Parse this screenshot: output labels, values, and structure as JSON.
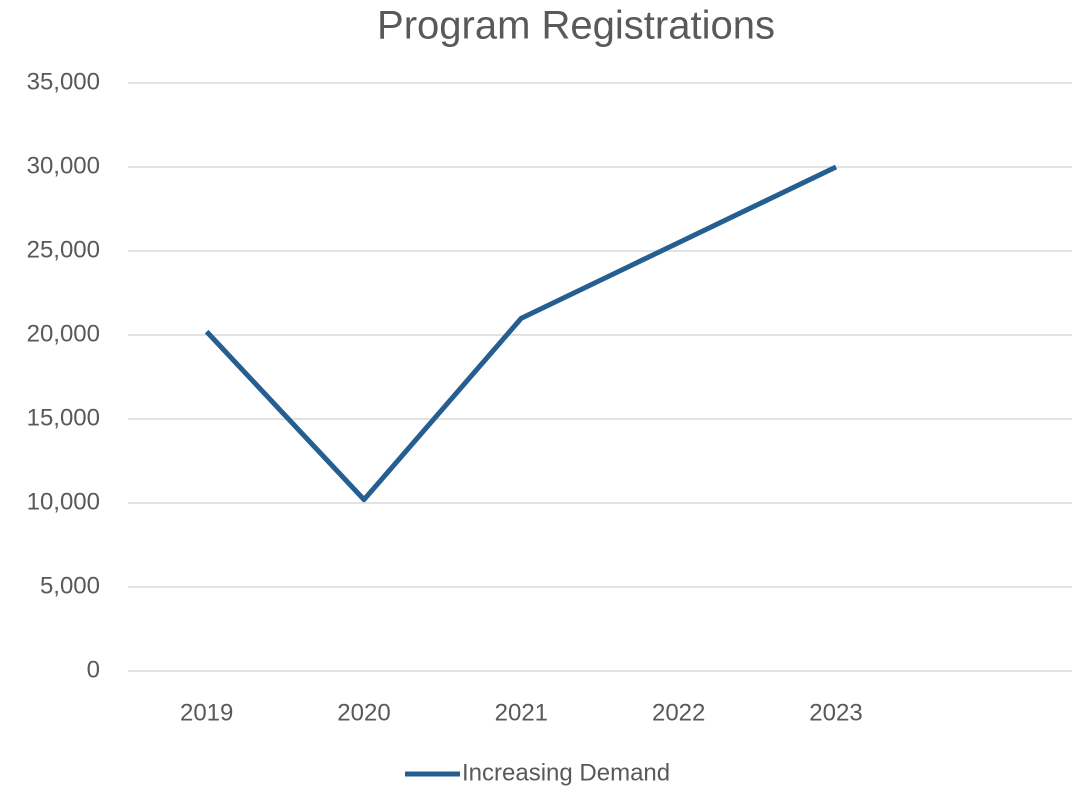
{
  "chart_data": {
    "type": "line",
    "title": "Program Registrations",
    "categories": [
      "2019",
      "2020",
      "2021",
      "2022",
      "2023",
      null
    ],
    "series": [
      {
        "name": "Increasing Demand",
        "color": "#255e91",
        "values": [
          20200,
          10200,
          21000,
          25500,
          30000,
          null
        ]
      }
    ],
    "ylim": [
      0,
      35000
    ],
    "yticks": [
      0,
      {
        "value": 5000,
        "label": "5,000"
      },
      {
        "value": 10000,
        "label": "10,000"
      },
      {
        "value": 15000,
        "label": "15,000"
      },
      {
        "value": 20000,
        "label": "20,000"
      },
      {
        "value": 25000,
        "label": "25,000"
      },
      {
        "value": 30000,
        "label": "30,000"
      },
      {
        "value": 35000,
        "label": "35,000"
      }
    ],
    "grid": true,
    "legend": "bottom"
  }
}
